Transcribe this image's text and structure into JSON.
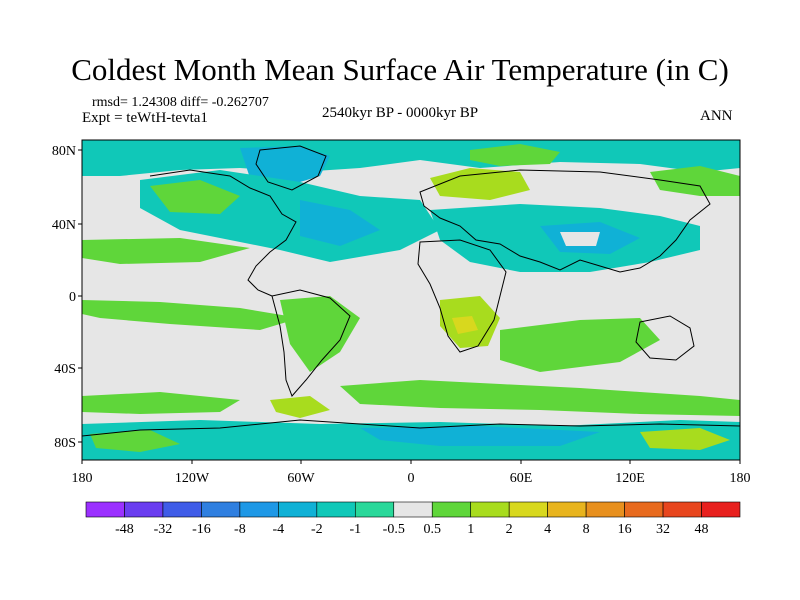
{
  "title": "Coldest Month Mean Surface Air Temperature (in C)",
  "stats": "rmsd= 1.24308 diff= -0.262707",
  "experiment": "Expt = teWtH-tevta1",
  "period": "2540kyr BP - 0000kyr BP",
  "season": "ANN",
  "axes": {
    "x_ticks": [
      "180",
      "120W",
      "60W",
      "0",
      "60E",
      "120E",
      "180"
    ],
    "y_ticks": [
      "80N",
      "40N",
      "0",
      "40S",
      "80S"
    ]
  },
  "colorbar": {
    "labels": [
      "-48",
      "-32",
      "-16",
      "-8",
      "-4",
      "-2",
      "-1",
      "-0.5",
      "0.5",
      "1",
      "2",
      "4",
      "8",
      "16",
      "32",
      "48"
    ],
    "colors": [
      "#9b30ff",
      "#6a3df0",
      "#3f5ce8",
      "#2f7fe0",
      "#1e98e6",
      "#10b1d6",
      "#10c8b8",
      "#2ad89a",
      "#e6e6e6",
      "#5fd63a",
      "#a8dc1e",
      "#d8d81e",
      "#e8b41e",
      "#e8901e",
      "#e86a1e",
      "#e8461e",
      "#e8201e"
    ]
  },
  "palette": {
    "neutral": "#e6e6e6",
    "cold_light": "#2ad89a",
    "cold_mid": "#10c8b8",
    "cold_deep": "#10b1d6",
    "cold_deeper": "#1e98e6",
    "warm_light": "#5fd63a",
    "warm_mid": "#a8dc1e",
    "warm_deep": "#d8d81e",
    "warm_hot": "#e8901e",
    "coast": "#000000"
  }
}
